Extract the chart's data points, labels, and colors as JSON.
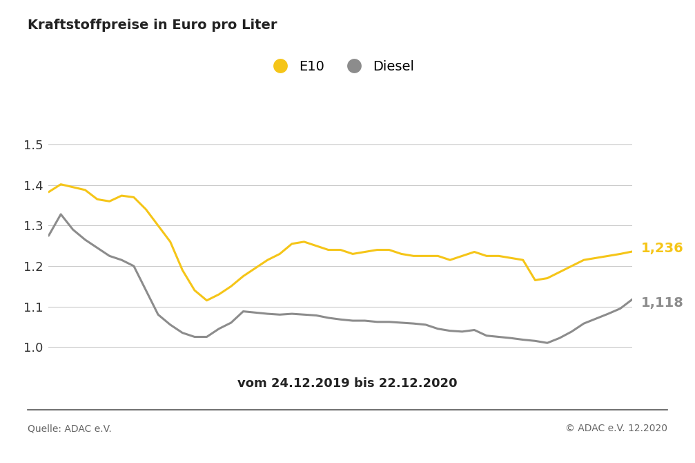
{
  "title": "Kraftstoffpreise in Euro pro Liter",
  "subtitle": "vom 24.12.2019 bis 22.12.2020",
  "source_left": "Quelle: ADAC e.V.",
  "source_right": "© ADAC e.V. 12.2020",
  "legend_e10": "E10",
  "legend_diesel": "Diesel",
  "e10_label": "1,236",
  "diesel_label": "1,118",
  "e10_color": "#F5C518",
  "diesel_color": "#8C8C8C",
  "background_color": "#FFFFFF",
  "ylim": [
    0.965,
    1.56
  ],
  "yticks": [
    1.0,
    1.1,
    1.2,
    1.3,
    1.4,
    1.5
  ],
  "e10_values": [
    1.383,
    1.402,
    1.395,
    1.388,
    1.365,
    1.36,
    1.374,
    1.37,
    1.34,
    1.3,
    1.26,
    1.19,
    1.14,
    1.115,
    1.13,
    1.15,
    1.175,
    1.195,
    1.215,
    1.23,
    1.255,
    1.26,
    1.25,
    1.24,
    1.24,
    1.23,
    1.235,
    1.24,
    1.24,
    1.23,
    1.225,
    1.225,
    1.225,
    1.215,
    1.225,
    1.235,
    1.225,
    1.225,
    1.22,
    1.215,
    1.165,
    1.17,
    1.185,
    1.2,
    1.215,
    1.22,
    1.225,
    1.23,
    1.236
  ],
  "diesel_values": [
    1.275,
    1.328,
    1.29,
    1.265,
    1.245,
    1.225,
    1.215,
    1.2,
    1.14,
    1.08,
    1.055,
    1.035,
    1.025,
    1.025,
    1.045,
    1.06,
    1.088,
    1.085,
    1.082,
    1.08,
    1.082,
    1.08,
    1.078,
    1.072,
    1.068,
    1.065,
    1.065,
    1.062,
    1.062,
    1.06,
    1.058,
    1.055,
    1.045,
    1.04,
    1.038,
    1.042,
    1.028,
    1.025,
    1.022,
    1.018,
    1.015,
    1.01,
    1.022,
    1.038,
    1.058,
    1.07,
    1.082,
    1.095,
    1.118
  ]
}
